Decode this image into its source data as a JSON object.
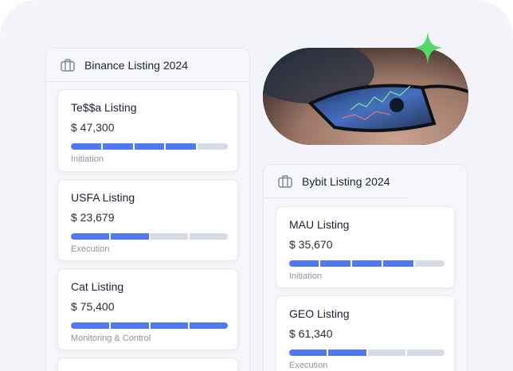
{
  "columns": [
    {
      "title": "Binance Listing 2024",
      "cards": [
        {
          "name": "Te$$a Listing",
          "amount": "$ 47,300",
          "stage": "Initiation",
          "progress_segments": 4,
          "total_segments": 5
        },
        {
          "name": "USFA Listing",
          "amount": "$ 23,679",
          "stage": "Execution",
          "progress_segments": 2,
          "total_segments": 4
        },
        {
          "name": "Cat Listing",
          "amount": "$ 75,400",
          "stage": "Monitoring & Control",
          "progress_segments": 4,
          "total_segments": 4
        }
      ]
    },
    {
      "title": "Bybit Listing 2024",
      "cards": [
        {
          "name": "MAU Listing",
          "amount": "$ 35,670",
          "stage": "Initiation",
          "progress_segments": 4,
          "total_segments": 5
        },
        {
          "name": "GEO Listing",
          "amount": "$ 61,340",
          "stage": "Execution",
          "progress_segments": 2,
          "total_segments": 4
        }
      ]
    }
  ],
  "icons": {
    "column_icon": "briefcase-icon",
    "sparkle": "sparkle-icon"
  },
  "colors": {
    "progress_on": "#5079f0",
    "progress_off": "#d7dbe3",
    "sparkle": "#53d86a"
  }
}
